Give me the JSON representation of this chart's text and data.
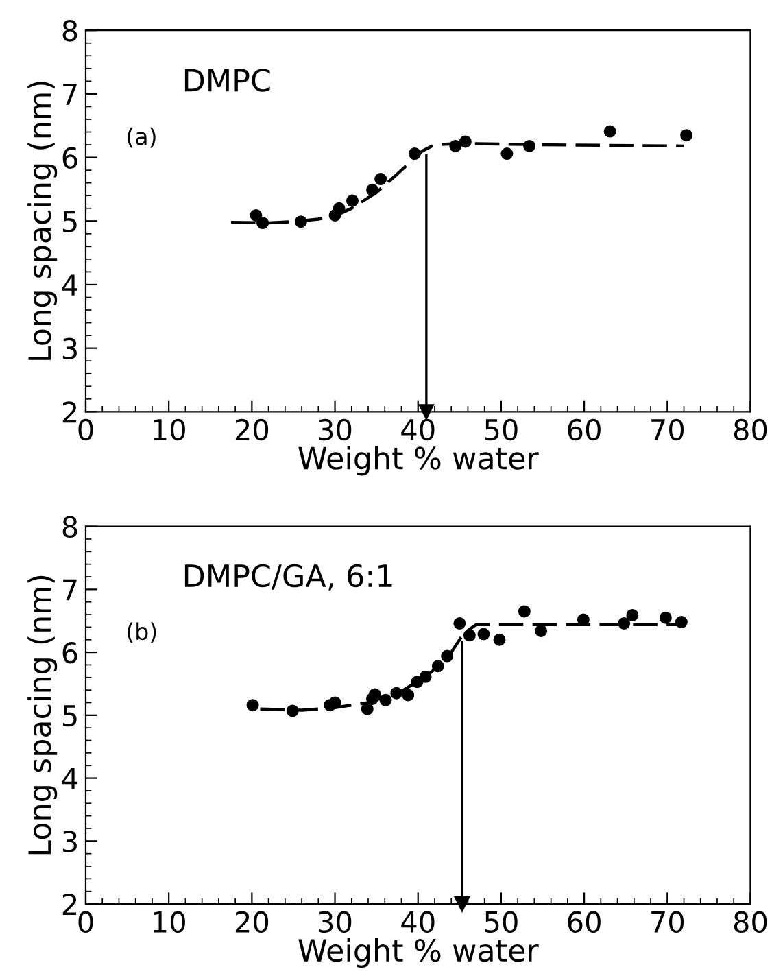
{
  "chart_data": [
    {
      "type": "scatter",
      "xlabel": "Weight % water",
      "ylabel": "Long spacing (nm)",
      "annotations": [
        "DMPC",
        "(a)"
      ],
      "xlim": [
        0,
        80
      ],
      "ylim": [
        2,
        8
      ],
      "xticks": [
        0,
        10,
        20,
        30,
        40,
        50,
        60,
        70,
        80
      ],
      "yticks": [
        2,
        3,
        4,
        5,
        6,
        7,
        8
      ],
      "grid": false,
      "legend": false,
      "series": [
        {
          "color": "#000000",
          "marker": "circle",
          "x": [
            20.5,
            21.3,
            25.9,
            30.0,
            30.5,
            32.1,
            34.5,
            35.5,
            39.6,
            44.5,
            45.7,
            50.7,
            53.4,
            63.1,
            72.3
          ],
          "values": [
            5.09,
            4.97,
            4.99,
            5.09,
            5.2,
            5.32,
            5.49,
            5.66,
            6.06,
            6.18,
            6.25,
            6.06,
            6.18,
            6.41,
            6.35
          ]
        },
        {
          "type": "line",
          "color": "#000000",
          "line_style": "dashed",
          "marker": "none",
          "x": [
            17.5,
            22,
            25,
            28,
            30,
            32,
            35,
            37,
            39,
            40.5,
            42,
            45,
            55,
            72
          ],
          "values": [
            4.98,
            4.97,
            4.99,
            5.03,
            5.08,
            5.2,
            5.45,
            5.68,
            5.92,
            6.1,
            6.2,
            6.22,
            6.2,
            6.18
          ]
        }
      ],
      "ref_lines": [
        {
          "axis": "x",
          "value": 41,
          "color": "#000000"
        }
      ]
    },
    {
      "type": "scatter",
      "xlabel": "Weight % water",
      "ylabel": "Long spacing (nm)",
      "annotations": [
        "DMPC/GA, 6:1",
        "(b)"
      ],
      "xlim": [
        0,
        80
      ],
      "ylim": [
        2,
        8
      ],
      "xticks": [
        0,
        10,
        20,
        30,
        40,
        50,
        60,
        70,
        80
      ],
      "yticks": [
        2,
        3,
        4,
        5,
        6,
        7,
        8
      ],
      "grid": false,
      "legend": false,
      "series": [
        {
          "color": "#000000",
          "marker": "circle",
          "x": [
            20.1,
            24.9,
            29.4,
            30.0,
            33.9,
            34.5,
            34.8,
            36.1,
            37.4,
            38.8,
            39.9,
            40.9,
            42.4,
            43.5,
            45.0,
            46.2,
            47.9,
            49.8,
            52.8,
            54.8,
            59.9,
            64.8,
            65.8,
            69.8,
            71.7
          ],
          "values": [
            5.16,
            5.07,
            5.16,
            5.2,
            5.1,
            5.26,
            5.33,
            5.24,
            5.35,
            5.32,
            5.53,
            5.61,
            5.78,
            5.94,
            6.46,
            6.27,
            6.29,
            6.2,
            6.65,
            6.34,
            6.52,
            6.46,
            6.59,
            6.55,
            6.48
          ]
        },
        {
          "type": "line",
          "color": "#000000",
          "line_style": "dashed",
          "marker": "none",
          "x": [
            21,
            26,
            30,
            34,
            38,
            41,
            43.5,
            45.5,
            47,
            72
          ],
          "values": [
            5.1,
            5.08,
            5.12,
            5.2,
            5.38,
            5.62,
            5.9,
            6.3,
            6.44,
            6.44
          ]
        }
      ],
      "ref_lines": [
        {
          "axis": "x",
          "value": 45.3,
          "color": "#000000"
        }
      ]
    }
  ]
}
